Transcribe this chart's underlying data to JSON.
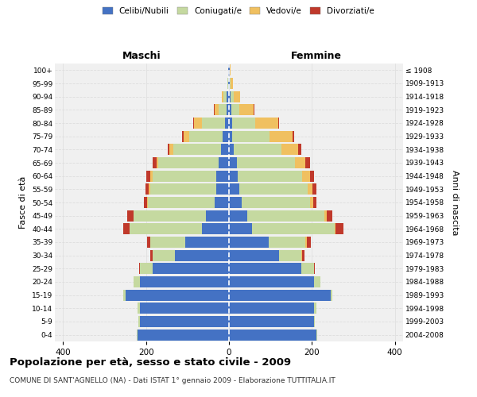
{
  "age_groups": [
    "0-4",
    "5-9",
    "10-14",
    "15-19",
    "20-24",
    "25-29",
    "30-34",
    "35-39",
    "40-44",
    "45-49",
    "50-54",
    "55-59",
    "60-64",
    "65-69",
    "70-74",
    "75-79",
    "80-84",
    "85-89",
    "90-94",
    "95-99",
    "100+"
  ],
  "birth_years": [
    "2004-2008",
    "1999-2003",
    "1994-1998",
    "1989-1993",
    "1984-1988",
    "1979-1983",
    "1974-1978",
    "1969-1973",
    "1964-1968",
    "1959-1963",
    "1954-1958",
    "1949-1953",
    "1944-1948",
    "1939-1943",
    "1934-1938",
    "1929-1933",
    "1924-1928",
    "1919-1923",
    "1914-1918",
    "1909-1913",
    "≤ 1908"
  ],
  "male_celibi": [
    220,
    215,
    215,
    250,
    215,
    185,
    130,
    105,
    65,
    55,
    35,
    30,
    30,
    25,
    20,
    15,
    10,
    5,
    5,
    2,
    2
  ],
  "male_coniugati": [
    2,
    3,
    5,
    5,
    15,
    30,
    55,
    85,
    175,
    175,
    160,
    160,
    155,
    145,
    115,
    80,
    55,
    20,
    8,
    2,
    0
  ],
  "male_vedovi": [
    0,
    0,
    0,
    0,
    0,
    0,
    0,
    0,
    0,
    0,
    2,
    3,
    5,
    5,
    8,
    15,
    20,
    10,
    5,
    0,
    0
  ],
  "male_divorziati": [
    0,
    0,
    0,
    0,
    0,
    2,
    5,
    8,
    15,
    15,
    8,
    8,
    10,
    10,
    5,
    3,
    2,
    2,
    0,
    0,
    0
  ],
  "female_celibi": [
    210,
    205,
    205,
    245,
    205,
    175,
    120,
    95,
    55,
    45,
    30,
    25,
    22,
    20,
    12,
    8,
    8,
    5,
    3,
    2,
    1
  ],
  "female_coniugati": [
    2,
    3,
    5,
    5,
    15,
    30,
    55,
    90,
    200,
    185,
    165,
    165,
    155,
    140,
    115,
    90,
    55,
    20,
    8,
    2,
    0
  ],
  "female_vedovi": [
    0,
    0,
    0,
    0,
    0,
    0,
    2,
    2,
    2,
    5,
    8,
    12,
    18,
    25,
    40,
    55,
    55,
    35,
    15,
    5,
    2
  ],
  "female_divorziati": [
    0,
    0,
    0,
    0,
    0,
    2,
    5,
    10,
    20,
    15,
    8,
    8,
    10,
    10,
    8,
    5,
    2,
    2,
    0,
    0,
    0
  ],
  "colors": {
    "celibi": "#4472c4",
    "coniugati": "#c5d9a0",
    "vedovi": "#f0c060",
    "divorziati": "#c0392b"
  },
  "title": "Popolazione per età, sesso e stato civile - 2009",
  "subtitle": "COMUNE DI SANT'AGNELLO (NA) - Dati ISTAT 1° gennaio 2009 - Elaborazione TUTTITALIA.IT",
  "xlabel_left": "Maschi",
  "xlabel_right": "Femmine",
  "ylabel_left": "Fasce di età",
  "ylabel_right": "Anni di nascita",
  "xlim": 420,
  "bg_color": "#f0f0f0",
  "grid_color": "#dddddd"
}
